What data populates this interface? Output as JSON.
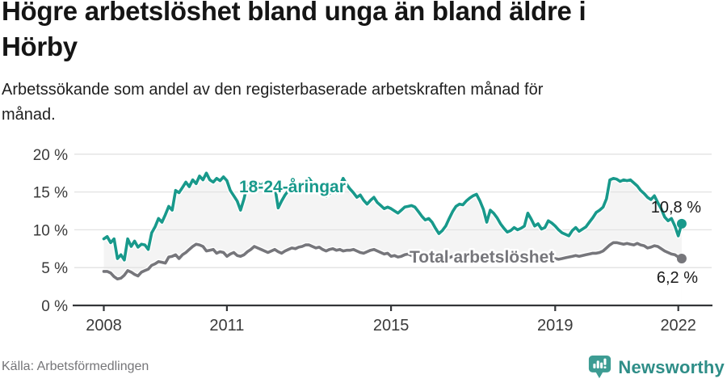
{
  "header": {
    "title": "Högre arbetslöshet bland unga än bland äldre i\nHörby",
    "subtitle": "Arbetssökande som andel av den registerbaserade arbetskraften månad för\nmånad."
  },
  "footer": {
    "source": "Källa: Arbetsförmedlingen",
    "brand": "Newsworthy"
  },
  "colors": {
    "youth_line": "#18998b",
    "total_line": "#76767b",
    "grid": "#e2e2e2",
    "axis": "#333538",
    "tick_text": "#3a3a3a",
    "annotation_text": "#1a1a1a",
    "area_fill": "#f4f4f4",
    "logo_teal": "#3d9c93",
    "halo": "#ffffff"
  },
  "chart_data": {
    "type": "line",
    "title": "Högre arbetslöshet bland unga än bland äldre i Hörby",
    "subtitle": "Arbetssökande som andel av den registerbaserade arbetskraften månad för månad.",
    "xlabel": "",
    "ylabel": "",
    "x_start": "2008-01",
    "x_end": "2022-02",
    "x_ticks": [
      2008,
      2011,
      2015,
      2019,
      2022
    ],
    "x_tick_labels": [
      "2008",
      "2011",
      "2015",
      "2019",
      "2022"
    ],
    "y_ticks": [
      0,
      5,
      10,
      15,
      20
    ],
    "y_tick_labels": [
      "0 %",
      "5 %",
      "10 %",
      "15 %",
      "20 %"
    ],
    "ylim": [
      0,
      20
    ],
    "grid": "horizontal",
    "legend_position": "inline-labels",
    "series": [
      {
        "name": "18-24-åringar",
        "end_label": "10,8 %",
        "last_value": 10.8,
        "values": [
          8.8,
          9.1,
          8.3,
          8.8,
          6.2,
          6.7,
          6.0,
          8.8,
          7.8,
          8.5,
          7.7,
          8.1,
          8.0,
          7.4,
          9.6,
          10.4,
          11.5,
          11.0,
          12.0,
          13.1,
          12.6,
          15.2,
          14.9,
          15.6,
          16.3,
          15.7,
          16.6,
          16.1,
          17.1,
          16.6,
          17.5,
          16.6,
          16.3,
          16.8,
          16.5,
          17.0,
          16.5,
          15.2,
          14.5,
          13.8,
          12.6,
          14.1,
          16.0,
          16.5,
          15.5,
          16.2,
          15.8,
          16.3,
          16.0,
          16.4,
          15.7,
          12.9,
          13.8,
          14.6,
          15.2,
          15.8,
          15.4,
          16.0,
          15.6,
          16.2,
          16.8,
          16.2,
          15.6,
          15.9,
          15.0,
          14.4,
          14.8,
          15.3,
          14.9,
          15.8,
          16.8,
          16.0,
          15.4,
          14.9,
          14.3,
          14.6,
          13.9,
          13.4,
          13.9,
          14.3,
          13.6,
          13.2,
          12.8,
          13.0,
          12.8,
          12.5,
          12.2,
          12.6,
          13.0,
          13.1,
          13.2,
          13.0,
          12.4,
          11.8,
          11.3,
          11.5,
          11.0,
          10.2,
          9.5,
          9.9,
          10.5,
          11.5,
          12.4,
          13.1,
          13.4,
          13.3,
          13.8,
          14.2,
          14.5,
          14.7,
          13.8,
          12.7,
          11.0,
          12.6,
          12.2,
          11.6,
          10.8,
          10.2,
          9.7,
          9.9,
          10.3,
          10.0,
          10.2,
          10.5,
          12.2,
          11.4,
          10.5,
          10.8,
          10.1,
          10.3,
          11.2,
          10.9,
          10.5,
          10.0,
          9.6,
          9.4,
          9.2,
          9.9,
          10.3,
          9.8,
          10.1,
          10.4,
          11.0,
          11.6,
          12.3,
          12.6,
          13.0,
          14.1,
          16.6,
          16.8,
          16.7,
          16.4,
          16.6,
          16.5,
          16.6,
          16.2,
          15.8,
          15.2,
          14.8,
          14.3,
          14.0,
          14.5,
          13.6,
          12.8,
          11.7,
          11.2,
          11.5,
          10.5,
          9.2,
          10.8
        ]
      },
      {
        "name": "Total arbetslöshet",
        "end_label": "6,2 %",
        "last_value": 6.2,
        "values": [
          4.5,
          4.5,
          4.3,
          3.8,
          3.5,
          3.6,
          4.0,
          4.6,
          4.4,
          4.1,
          3.9,
          4.4,
          4.6,
          4.8,
          5.3,
          5.5,
          5.8,
          5.7,
          5.6,
          6.4,
          6.5,
          6.7,
          6.2,
          6.7,
          7.0,
          7.4,
          7.8,
          8.1,
          8.0,
          7.8,
          7.2,
          7.3,
          7.4,
          6.9,
          7.1,
          7.0,
          6.5,
          6.8,
          7.0,
          6.6,
          6.5,
          6.7,
          7.1,
          7.4,
          7.8,
          7.6,
          7.4,
          7.2,
          7.0,
          7.2,
          7.4,
          7.1,
          6.9,
          7.2,
          7.4,
          7.6,
          7.5,
          7.7,
          7.8,
          8.0,
          8.0,
          7.8,
          7.6,
          7.7,
          7.4,
          7.2,
          7.4,
          7.5,
          7.3,
          7.4,
          7.2,
          7.3,
          7.3,
          7.4,
          7.2,
          7.0,
          6.9,
          7.1,
          7.3,
          7.4,
          7.2,
          7.0,
          6.8,
          6.9,
          6.5,
          6.6,
          6.4,
          6.5,
          6.7,
          6.8,
          6.6,
          6.4,
          6.3,
          6.5,
          6.4,
          6.2,
          6.3,
          6.1,
          6.0,
          6.2,
          6.4,
          6.3,
          6.5,
          6.6,
          6.4,
          6.5,
          6.3,
          6.4,
          6.5,
          6.4,
          6.2,
          6.3,
          6.1,
          6.4,
          6.6,
          6.5,
          6.3,
          6.2,
          6.1,
          6.2,
          6.3,
          6.2,
          6.0,
          6.1,
          6.3,
          6.4,
          6.2,
          6.3,
          6.1,
          6.0,
          6.1,
          6.2,
          6.2,
          6.1,
          6.2,
          6.3,
          6.4,
          6.5,
          6.6,
          6.5,
          6.6,
          6.7,
          6.8,
          6.9,
          6.9,
          7.0,
          7.2,
          7.6,
          8.0,
          8.3,
          8.3,
          8.2,
          8.1,
          8.2,
          8.1,
          8.0,
          8.2,
          8.0,
          7.9,
          7.6,
          7.7,
          7.9,
          7.8,
          7.5,
          7.2,
          7.0,
          6.8,
          6.7,
          6.4,
          6.2
        ]
      }
    ]
  }
}
